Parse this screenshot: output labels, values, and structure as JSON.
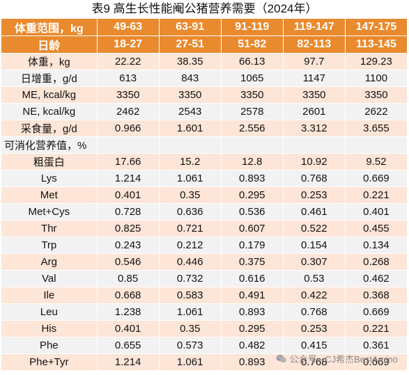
{
  "title": "表9  高生长性能阉公猪营养需要（2024年）",
  "header": {
    "weight_label": "体重范围，kg",
    "weights": [
      "49-63",
      "63-91",
      "91-119",
      "119-147",
      "147-175"
    ],
    "age_label": "日龄",
    "ages": [
      "18-27",
      "27-51",
      "51-82",
      "82-113",
      "113-145"
    ]
  },
  "rows": [
    {
      "label": "体重，kg",
      "values": [
        "22.22",
        "38.35",
        "66.13",
        "97.7",
        "129.23"
      ]
    },
    {
      "label": "日增重，g/d",
      "values": [
        "613",
        "843",
        "1065",
        "1147",
        "1100"
      ]
    },
    {
      "label": "ME, kcal/kg",
      "values": [
        "3350",
        "3350",
        "3350",
        "3350",
        "3350"
      ]
    },
    {
      "label": "NE, kcal/kg",
      "values": [
        "2462",
        "2543",
        "2578",
        "2601",
        "2622"
      ]
    },
    {
      "label": "采食量，g/d",
      "values": [
        "0.966",
        "1.601",
        "2.556",
        "3.312",
        "3.655"
      ]
    },
    {
      "label": "可消化营养值，%",
      "values": [
        "",
        "",
        "",
        "",
        ""
      ],
      "left": true
    },
    {
      "label": "粗蛋白",
      "values": [
        "17.66",
        "15.2",
        "12.8",
        "10.92",
        "9.52"
      ]
    },
    {
      "label": "Lys",
      "values": [
        "1.214",
        "1.061",
        "0.893",
        "0.768",
        "0.669"
      ]
    },
    {
      "label": "Met",
      "values": [
        "0.401",
        "0.35",
        "0.295",
        "0.253",
        "0.221"
      ]
    },
    {
      "label": "Met+Cys",
      "values": [
        "0.728",
        "0.636",
        "0.536",
        "0.461",
        "0.401"
      ]
    },
    {
      "label": "Thr",
      "values": [
        "0.825",
        "0.721",
        "0.607",
        "0.522",
        "0.455"
      ]
    },
    {
      "label": "Trp",
      "values": [
        "0.243",
        "0.212",
        "0.179",
        "0.154",
        "0.134"
      ]
    },
    {
      "label": "Arg",
      "values": [
        "0.546",
        "0.446",
        "0.375",
        "0.307",
        "0.268"
      ]
    },
    {
      "label": "Val",
      "values": [
        "0.85",
        "0.732",
        "0.616",
        "0.53",
        "0.462"
      ]
    },
    {
      "label": "Ile",
      "values": [
        "0.668",
        "0.583",
        "0.491",
        "0.422",
        "0.368"
      ]
    },
    {
      "label": "Leu",
      "values": [
        "1.238",
        "1.061",
        "0.893",
        "0.768",
        "0.669"
      ]
    },
    {
      "label": "His",
      "values": [
        "0.401",
        "0.35",
        "0.295",
        "0.253",
        "0.221"
      ]
    },
    {
      "label": "Phe",
      "values": [
        "0.655",
        "0.573",
        "0.482",
        "0.415",
        "0.361"
      ]
    },
    {
      "label": "Phe+Tyr",
      "values": [
        "1.214",
        "1.061",
        "0.893",
        "0.768",
        "0.669"
      ]
    }
  ],
  "watermark": {
    "text": "公众号 · CJ希杰BestAmino",
    "icon": "wechat-icon"
  },
  "colors": {
    "header_bg": "#e98a2e",
    "row_odd": "#fde5d7",
    "row_even": "#f2f2f2"
  }
}
